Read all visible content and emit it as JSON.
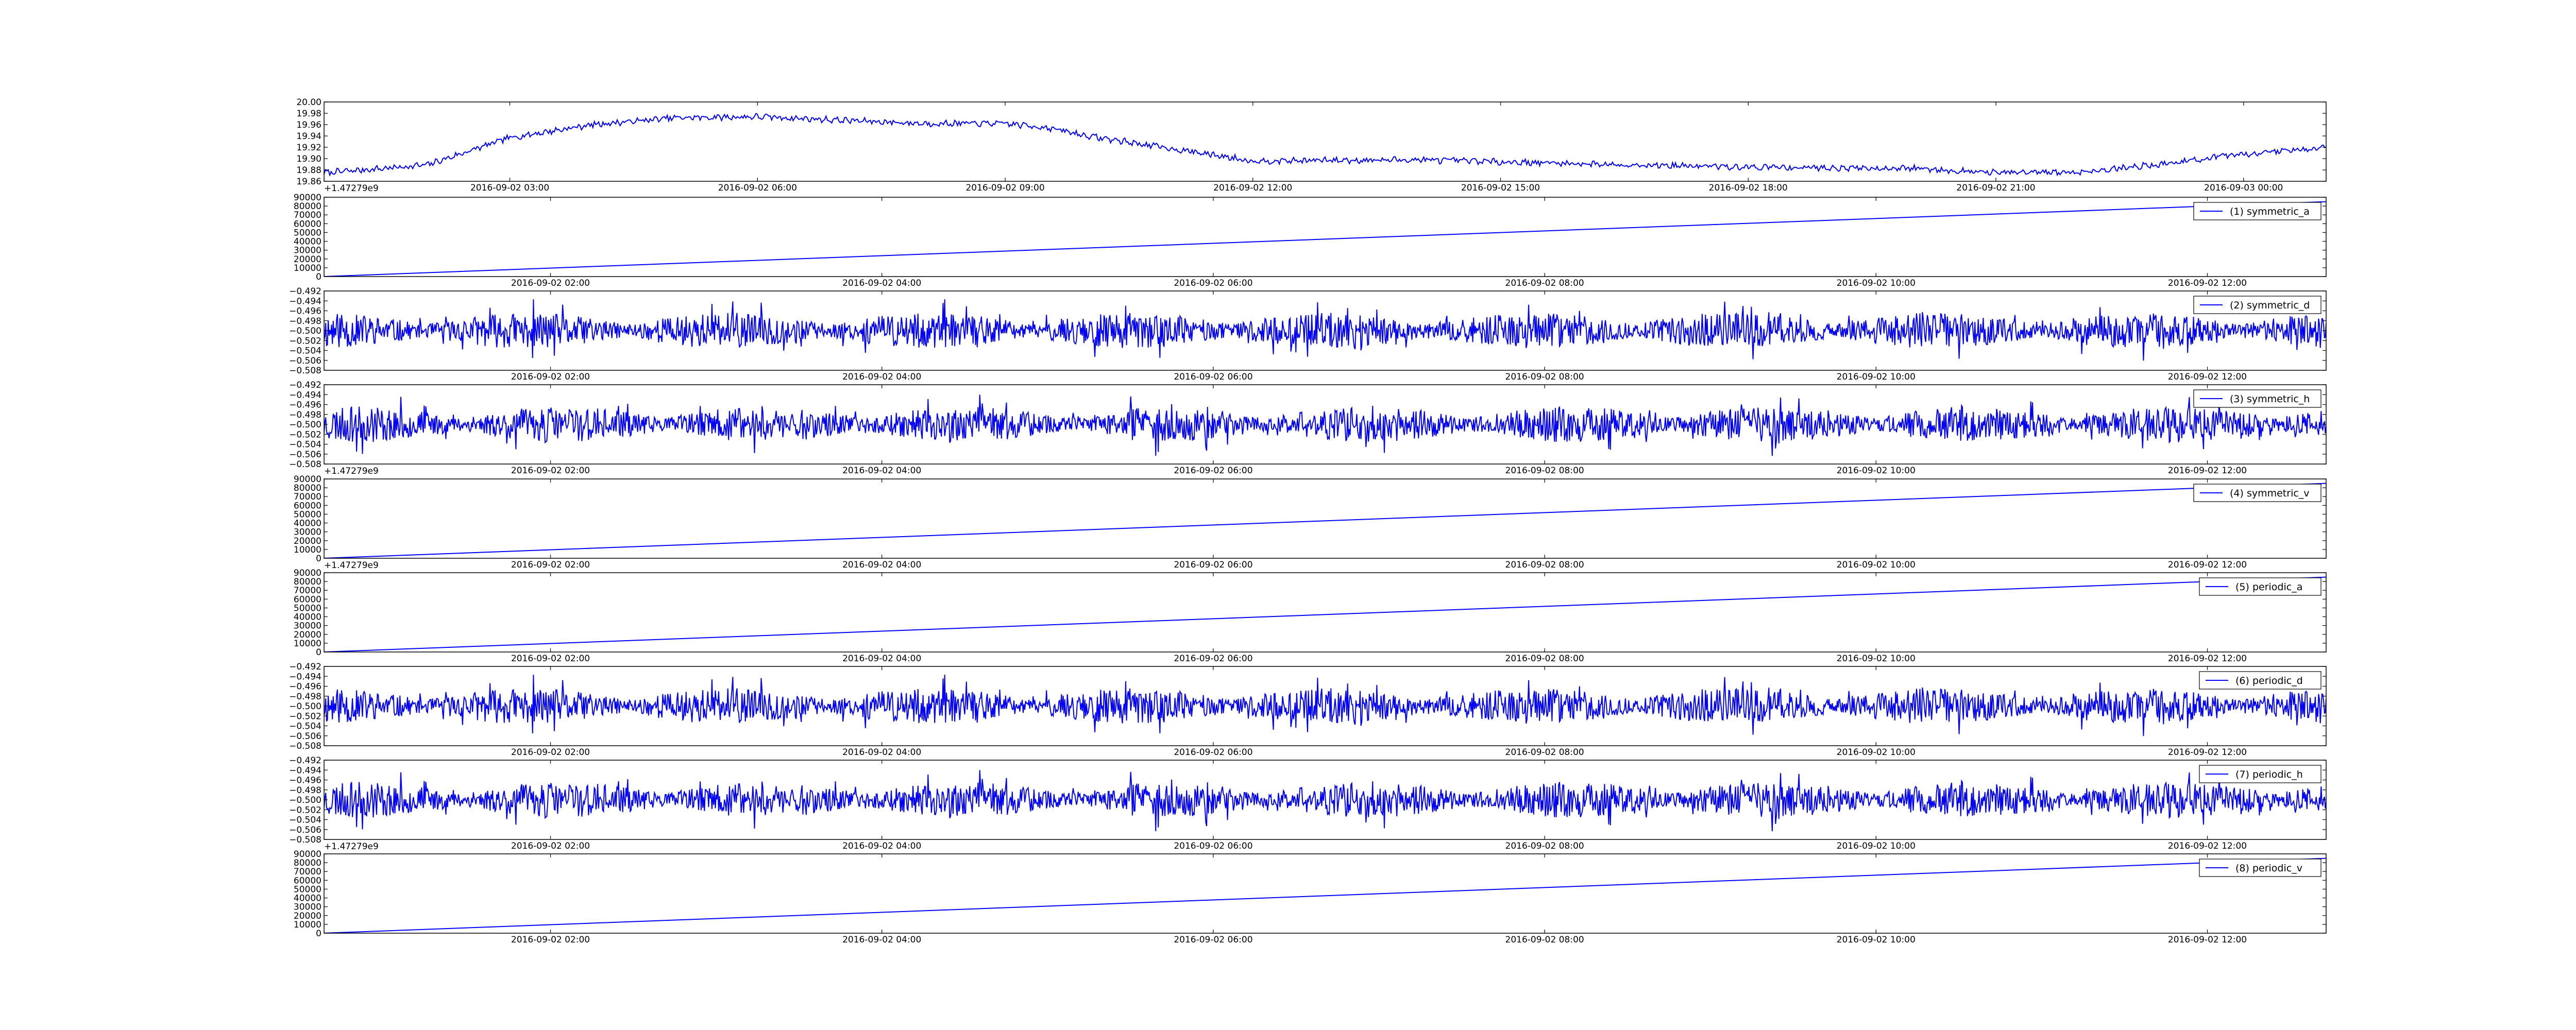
{
  "chart_data": [
    {
      "type": "line",
      "title": "",
      "xlabel": "",
      "ylabel": "",
      "x_range": [
        "2016-09-02 00:45",
        "2016-09-03 01:00"
      ],
      "xticks": [
        "2016-09-02 03:00",
        "2016-09-02 06:00",
        "2016-09-02 09:00",
        "2016-09-02 12:00",
        "2016-09-02 15:00",
        "2016-09-02 18:00",
        "2016-09-02 21:00",
        "2016-09-03 00:00"
      ],
      "ylim": [
        19.86,
        20.0
      ],
      "yticks": [
        "19.86",
        "19.88",
        "19.90",
        "19.92",
        "19.94",
        "19.96",
        "19.98",
        "20.00"
      ],
      "offset_text": "+1.47279e9",
      "grid": false,
      "legend": null,
      "series": [
        {
          "color": "#0000ff",
          "pattern": "trend_noise",
          "x": [
            "2016-09-02 00:45",
            "2016-09-02 01:30",
            "2016-09-02 02:00",
            "2016-09-02 03:00",
            "2016-09-02 04:00",
            "2016-09-02 05:00",
            "2016-09-02 06:00",
            "2016-09-02 07:00",
            "2016-09-02 08:00",
            "2016-09-02 09:00",
            "2016-09-02 09:30",
            "2016-09-02 10:00",
            "2016-09-02 11:00",
            "2016-09-02 12:00",
            "2016-09-02 14:00",
            "2016-09-02 16:00",
            "2016-09-02 18:00",
            "2016-09-02 20:00",
            "2016-09-02 21:00",
            "2016-09-02 22:00",
            "2016-09-02 23:00",
            "2016-09-03 00:00",
            "2016-09-03 01:00"
          ],
          "values": [
            19.875,
            19.883,
            19.889,
            19.937,
            19.96,
            19.972,
            19.974,
            19.968,
            19.962,
            19.962,
            19.955,
            19.94,
            19.918,
            19.896,
            19.898,
            19.891,
            19.885,
            19.883,
            19.875,
            19.876,
            19.89,
            19.908,
            19.92
          ]
        }
      ]
    },
    {
      "type": "line",
      "title": "",
      "xlabel": "",
      "ylabel": "",
      "x_range": [
        "2016-09-02 00:38",
        "2016-09-02 12:43"
      ],
      "xticks": [
        "2016-09-02 02:00",
        "2016-09-02 04:00",
        "2016-09-02 06:00",
        "2016-09-02 08:00",
        "2016-09-02 10:00",
        "2016-09-02 12:00"
      ],
      "ylim": [
        0,
        90000
      ],
      "yticks": [
        "0",
        "10000",
        "20000",
        "30000",
        "40000",
        "50000",
        "60000",
        "70000",
        "80000",
        "90000"
      ],
      "offset_text": "",
      "grid": false,
      "legend": "top-right",
      "series": [
        {
          "name": "(1) symmetric_a",
          "color": "#0000ff",
          "pattern": "linear",
          "x": [
            "2016-09-02 00:38",
            "2016-09-02 12:43"
          ],
          "values": [
            0,
            85000
          ]
        }
      ]
    },
    {
      "type": "line",
      "title": "",
      "xlabel": "",
      "ylabel": "",
      "x_range": [
        "2016-09-02 00:38",
        "2016-09-02 12:43"
      ],
      "xticks": [
        "2016-09-02 02:00",
        "2016-09-02 04:00",
        "2016-09-02 06:00",
        "2016-09-02 08:00",
        "2016-09-02 10:00",
        "2016-09-02 12:00"
      ],
      "ylim": [
        -0.508,
        -0.492
      ],
      "yticks": [
        "−0.508",
        "−0.506",
        "−0.504",
        "−0.502",
        "−0.500",
        "−0.498",
        "−0.496",
        "−0.494",
        "−0.492"
      ],
      "offset_text": "",
      "grid": false,
      "legend": "top-right",
      "series": [
        {
          "name": "(2) symmetric_d",
          "color": "#0000ff",
          "pattern": "noise",
          "center": -0.5,
          "amplitude": 0.006,
          "seed": 11
        }
      ]
    },
    {
      "type": "line",
      "title": "",
      "xlabel": "",
      "ylabel": "",
      "x_range": [
        "2016-09-02 00:38",
        "2016-09-02 12:43"
      ],
      "xticks": [
        "2016-09-02 02:00",
        "2016-09-02 04:00",
        "2016-09-02 06:00",
        "2016-09-02 08:00",
        "2016-09-02 10:00",
        "2016-09-02 12:00"
      ],
      "ylim": [
        -0.508,
        -0.492
      ],
      "yticks": [
        "−0.508",
        "−0.506",
        "−0.504",
        "−0.502",
        "−0.500",
        "−0.498",
        "−0.496",
        "−0.494",
        "−0.492"
      ],
      "offset_text": "+1.47279e9",
      "grid": false,
      "legend": "top-right",
      "series": [
        {
          "name": "(3) symmetric_h",
          "color": "#0000ff",
          "pattern": "noise",
          "center": -0.5,
          "amplitude": 0.006,
          "seed": 23
        }
      ]
    },
    {
      "type": "line",
      "title": "",
      "xlabel": "",
      "ylabel": "",
      "x_range": [
        "2016-09-02 00:38",
        "2016-09-02 12:43"
      ],
      "xticks": [
        "2016-09-02 02:00",
        "2016-09-02 04:00",
        "2016-09-02 06:00",
        "2016-09-02 08:00",
        "2016-09-02 10:00",
        "2016-09-02 12:00"
      ],
      "ylim": [
        0,
        90000
      ],
      "yticks": [
        "0",
        "10000",
        "20000",
        "30000",
        "40000",
        "50000",
        "60000",
        "70000",
        "80000",
        "90000"
      ],
      "offset_text": "+1.47279e9",
      "grid": false,
      "legend": "top-right",
      "series": [
        {
          "name": "(4) symmetric_v",
          "color": "#0000ff",
          "pattern": "linear",
          "x": [
            "2016-09-02 00:38",
            "2016-09-02 12:43"
          ],
          "values": [
            0,
            85000
          ]
        }
      ]
    },
    {
      "type": "line",
      "title": "",
      "xlabel": "",
      "ylabel": "",
      "x_range": [
        "2016-09-02 00:38",
        "2016-09-02 12:43"
      ],
      "xticks": [
        "2016-09-02 02:00",
        "2016-09-02 04:00",
        "2016-09-02 06:00",
        "2016-09-02 08:00",
        "2016-09-02 10:00",
        "2016-09-02 12:00"
      ],
      "ylim": [
        0,
        90000
      ],
      "yticks": [
        "0",
        "10000",
        "20000",
        "30000",
        "40000",
        "50000",
        "60000",
        "70000",
        "80000",
        "90000"
      ],
      "offset_text": "",
      "grid": false,
      "legend": "top-right",
      "series": [
        {
          "name": "(5) periodic_a",
          "color": "#0000ff",
          "pattern": "linear",
          "x": [
            "2016-09-02 00:38",
            "2016-09-02 12:43"
          ],
          "values": [
            0,
            85000
          ]
        }
      ]
    },
    {
      "type": "line",
      "title": "",
      "xlabel": "",
      "ylabel": "",
      "x_range": [
        "2016-09-02 00:38",
        "2016-09-02 12:43"
      ],
      "xticks": [
        "2016-09-02 02:00",
        "2016-09-02 04:00",
        "2016-09-02 06:00",
        "2016-09-02 08:00",
        "2016-09-02 10:00",
        "2016-09-02 12:00"
      ],
      "ylim": [
        -0.508,
        -0.492
      ],
      "yticks": [
        "−0.508",
        "−0.506",
        "−0.504",
        "−0.502",
        "−0.500",
        "−0.498",
        "−0.496",
        "−0.494",
        "−0.492"
      ],
      "offset_text": "",
      "grid": false,
      "legend": "top-right",
      "series": [
        {
          "name": "(6) periodic_d",
          "color": "#0000ff",
          "pattern": "noise",
          "center": -0.5,
          "amplitude": 0.006,
          "seed": 11
        }
      ]
    },
    {
      "type": "line",
      "title": "",
      "xlabel": "",
      "ylabel": "",
      "x_range": [
        "2016-09-02 00:38",
        "2016-09-02 12:43"
      ],
      "xticks": [
        "2016-09-02 02:00",
        "2016-09-02 04:00",
        "2016-09-02 06:00",
        "2016-09-02 08:00",
        "2016-09-02 10:00",
        "2016-09-02 12:00"
      ],
      "ylim": [
        -0.508,
        -0.492
      ],
      "yticks": [
        "−0.508",
        "−0.506",
        "−0.504",
        "−0.502",
        "−0.500",
        "−0.498",
        "−0.496",
        "−0.494",
        "−0.492"
      ],
      "offset_text": "+1.47279e9",
      "grid": false,
      "legend": "top-right",
      "series": [
        {
          "name": "(7) periodic_h",
          "color": "#0000ff",
          "pattern": "noise",
          "center": -0.5,
          "amplitude": 0.006,
          "seed": 23
        }
      ]
    },
    {
      "type": "line",
      "title": "",
      "xlabel": "",
      "ylabel": "",
      "x_range": [
        "2016-09-02 00:38",
        "2016-09-02 12:43"
      ],
      "xticks": [
        "2016-09-02 02:00",
        "2016-09-02 04:00",
        "2016-09-02 06:00",
        "2016-09-02 08:00",
        "2016-09-02 10:00",
        "2016-09-02 12:00"
      ],
      "ylim": [
        0,
        90000
      ],
      "yticks": [
        "0",
        "10000",
        "20000",
        "30000",
        "40000",
        "50000",
        "60000",
        "70000",
        "80000",
        "90000"
      ],
      "offset_text": "",
      "grid": false,
      "legend": "top-right",
      "series": [
        {
          "name": "(8) periodic_v",
          "color": "#0000ff",
          "pattern": "linear",
          "x": [
            "2016-09-02 00:38",
            "2016-09-02 12:43"
          ],
          "values": [
            0,
            85000
          ]
        }
      ]
    }
  ]
}
